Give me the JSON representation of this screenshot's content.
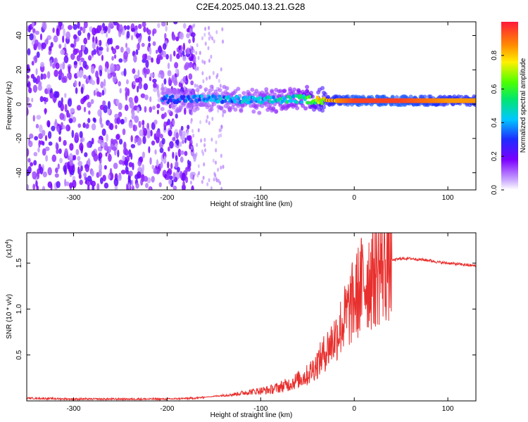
{
  "figure": {
    "title": "C2E4.2025.040.13.21.G28"
  },
  "chart_data": [
    {
      "type": "heatmap",
      "xlabel": "Height of straight line (km)",
      "ylabel": "Frequency (Hz)",
      "xlim": [
        -350,
        130
      ],
      "ylim": [
        -50,
        48
      ],
      "xticks": [
        -300,
        -200,
        -100,
        0,
        100
      ],
      "yticks": [
        -40,
        -20,
        0,
        20,
        40
      ],
      "grid": false,
      "colorbar": {
        "label": "Normalized spectral amplitude",
        "range": [
          0,
          1
        ],
        "ticks": [
          "0.0",
          "0.2",
          "0.4",
          "0.6",
          "0.8"
        ],
        "colormap": "rainbow (white-violet-blue-cyan-green-yellow-orange-red)"
      },
      "description_points": [
        {
          "x": -200,
          "y_center": 3,
          "value": 0.3
        },
        {
          "x": -150,
          "y_center": 3,
          "value": 0.35
        },
        {
          "x": -100,
          "y_center": 2,
          "value": 0.4
        },
        {
          "x": -60,
          "y_center": 3,
          "value": 0.45
        },
        {
          "x": -20,
          "y_center": 2,
          "value": 0.85
        },
        {
          "x": 0,
          "y_center": 2,
          "value": 0.95
        },
        {
          "x": 50,
          "y_center": 2,
          "value": 0.95
        },
        {
          "x": 100,
          "y_center": 2,
          "value": 0.85
        }
      ]
    },
    {
      "type": "line",
      "xlabel": "Height of straight line (km)",
      "ylabel": "SNR (10 * v/v)",
      "y_multiplier_label": "(x10",
      "y_multiplier_exp": "4",
      "xlim": [
        -350,
        130
      ],
      "ylim": [
        0,
        1.83
      ],
      "xticks": [
        -300,
        -200,
        -100,
        0,
        100
      ],
      "yticks": [
        0.5,
        1.0,
        1.5
      ],
      "ytick_labels": [
        "0.5",
        "1.0",
        "1.5"
      ],
      "grid": false,
      "series": [
        {
          "color": "#e8302e",
          "x": [
            -350,
            -300,
            -250,
            -200,
            -170,
            -150,
            -130,
            -110,
            -90,
            -70,
            -50,
            -40,
            -30,
            -20,
            -10,
            0,
            5,
            10,
            20,
            30,
            40,
            50,
            60,
            70,
            80,
            90,
            100,
            110,
            120,
            130
          ],
          "y": [
            0.03,
            0.02,
            0.02,
            0.02,
            0.03,
            0.05,
            0.07,
            0.1,
            0.12,
            0.18,
            0.28,
            0.4,
            0.55,
            0.7,
            0.9,
            1.1,
            1.2,
            1.3,
            1.4,
            1.48,
            1.53,
            1.55,
            1.55,
            1.54,
            1.53,
            1.51,
            1.5,
            1.49,
            1.48,
            1.47
          ]
        }
      ]
    }
  ]
}
